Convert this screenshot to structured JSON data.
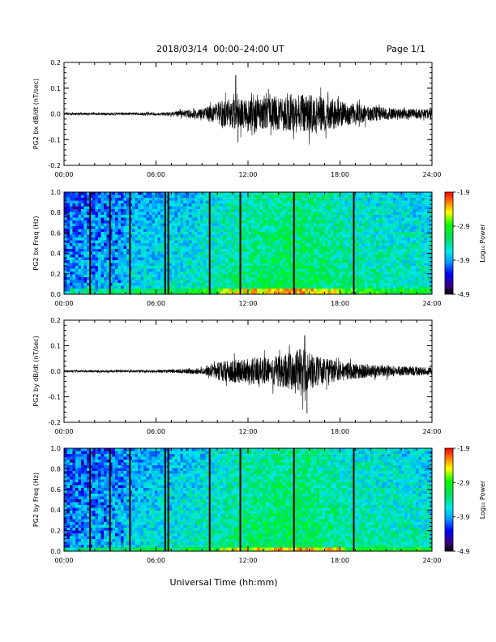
{
  "header": {
    "date": "2018/03/14",
    "time_range": "00:00–24:00 UT",
    "page": "Page 1/1"
  },
  "footer": {
    "xlabel": "Universal Time (hh:mm)"
  },
  "colors": {
    "trace": "#000000",
    "axis": "#000000",
    "background": "#ffffff"
  },
  "chart_data": [
    {
      "type": "line",
      "ylabel": "PG2 bx dB/dt (nT/sec)",
      "xlim": [
        0,
        24
      ],
      "ylim": [
        -0.2,
        0.2
      ],
      "xtick_labels": [
        "00:00",
        "06:00",
        "12:00",
        "18:00",
        "24:00"
      ],
      "ytick_labels": [
        "-0.2",
        "-0.1",
        "0.0",
        "0.1",
        "0.2"
      ],
      "series": [
        {
          "envelope_hours": [
            0,
            6,
            7,
            7.5,
            9,
            10,
            11,
            12,
            13,
            14,
            15,
            16,
            17,
            18,
            19,
            20,
            21,
            22,
            23,
            24
          ],
          "envelope_amplitude": [
            0.004,
            0.006,
            0.008,
            0.012,
            0.02,
            0.045,
            0.06,
            0.055,
            0.06,
            0.065,
            0.075,
            0.075,
            0.07,
            0.05,
            0.04,
            0.03,
            0.025,
            0.02,
            0.02,
            0.018
          ],
          "peak_hour": 11.2,
          "peak_value": 0.15,
          "min_value": -0.11
        }
      ]
    },
    {
      "type": "heatmap",
      "ylabel": "PG2 bx Freq (Hz)",
      "xlim": [
        0,
        24
      ],
      "ylim": [
        0,
        1
      ],
      "xtick_labels": [
        "00:00",
        "06:00",
        "12:00",
        "18:00",
        "24:00"
      ],
      "ytick_labels": [
        "0.0",
        "0.2",
        "0.4",
        "0.6",
        "0.8",
        "1.0"
      ],
      "colorbar": {
        "label": "Log₁₀ Power",
        "range": [
          -4.9,
          -1.9
        ],
        "tick_labels": [
          "-1.9",
          "-2.9",
          "-3.9",
          "-4.9"
        ]
      },
      "gap_hours": [
        1.7,
        3.0,
        4.3,
        6.6,
        6.8,
        9.5,
        11.5,
        15.0,
        18.9
      ]
    },
    {
      "type": "line",
      "ylabel": "PG2 by dB/dt (nT/sec)",
      "xlim": [
        0,
        24
      ],
      "ylim": [
        -0.2,
        0.2
      ],
      "xtick_labels": [
        "00:00",
        "06:00",
        "12:00",
        "18:00",
        "24:00"
      ],
      "ytick_labels": [
        "-0.2",
        "-0.1",
        "0.0",
        "0.1",
        "0.2"
      ],
      "series": [
        {
          "envelope_hours": [
            0,
            6,
            7,
            8,
            9,
            9.5,
            10,
            11,
            12,
            13,
            14,
            15,
            15.5,
            16,
            17,
            18,
            19,
            20,
            22,
            24
          ],
          "envelope_amplitude": [
            0.004,
            0.005,
            0.007,
            0.009,
            0.012,
            0.02,
            0.035,
            0.045,
            0.05,
            0.055,
            0.06,
            0.075,
            0.1,
            0.07,
            0.05,
            0.04,
            0.03,
            0.025,
            0.02,
            0.015
          ],
          "peak_hour": 15.7,
          "peak_value": 0.14,
          "min_value": -0.165
        }
      ]
    },
    {
      "type": "heatmap",
      "ylabel": "PG2 by Freq (Hz)",
      "xlim": [
        0,
        24
      ],
      "ylim": [
        0,
        1
      ],
      "xtick_labels": [
        "00:00",
        "06:00",
        "12:00",
        "18:00",
        "24:00"
      ],
      "ytick_labels": [
        "0.0",
        "0.2",
        "0.4",
        "0.6",
        "0.8",
        "1.0"
      ],
      "colorbar": {
        "label": "Log₁₀ Power",
        "range": [
          -4.9,
          -1.9
        ],
        "tick_labels": [
          "-1.9",
          "-2.9",
          "-3.9",
          "-4.9"
        ]
      },
      "gap_hours": [
        1.7,
        3.0,
        4.3,
        6.6,
        6.8,
        9.5,
        11.5,
        15.0,
        18.9
      ]
    }
  ]
}
